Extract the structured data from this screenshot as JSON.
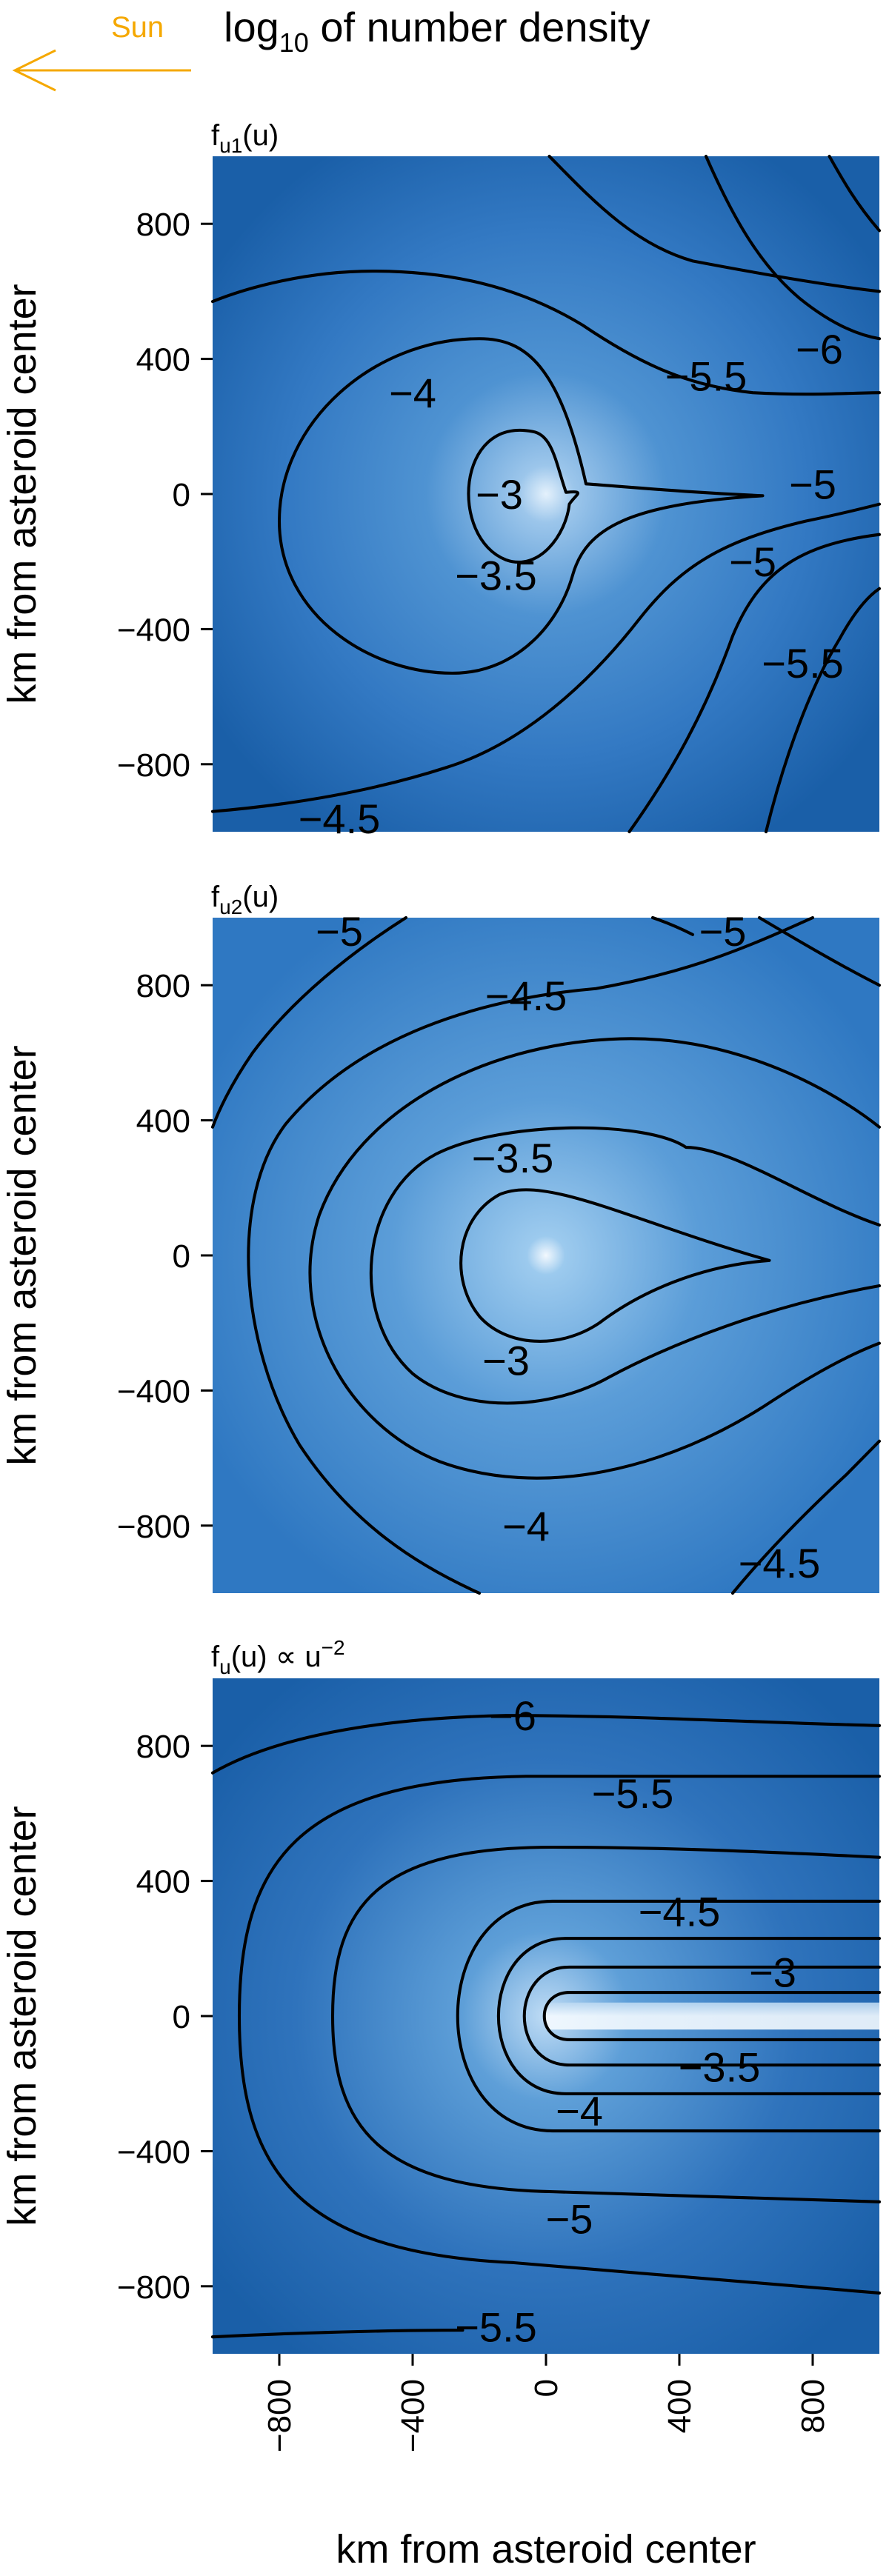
{
  "header": {
    "sun_label": "Sun",
    "title_main": "log",
    "title_sub": "10",
    "title_rest": " of number density"
  },
  "colors": {
    "sun": "#F5A800",
    "deep": "#1A5FA8",
    "light": "#E4F1FC",
    "contour": "#000000"
  },
  "chart_data": [
    {
      "type": "heatmap",
      "panel_label_parts": [
        "f",
        "u1",
        "(u)"
      ],
      "ylabel": "km from asteroid center",
      "xlim": [
        -1000,
        1000
      ],
      "ylim": [
        -1000,
        1000
      ],
      "yticks": [
        -800,
        -400,
        0,
        400,
        800
      ],
      "contour_levels": [
        -3,
        -3.5,
        -4,
        -4.5,
        -5,
        -5.5,
        -6
      ],
      "contour_labels": [
        {
          "text": "−3",
          "x": -140,
          "y": 0
        },
        {
          "text": "−3.5",
          "x": -150,
          "y": -240
        },
        {
          "text": "−4",
          "x": -400,
          "y": 300
        },
        {
          "text": "−4.5",
          "x": -620,
          "y": -960
        },
        {
          "text": "−5",
          "x": 800,
          "y": 30
        },
        {
          "text": "−5",
          "x": 620,
          "y": -200
        },
        {
          "text": "−5.5",
          "x": 480,
          "y": 350
        },
        {
          "text": "−5.5",
          "x": 770,
          "y": -500
        },
        {
          "text": "−6",
          "x": 820,
          "y": 430
        }
      ]
    },
    {
      "type": "heatmap",
      "panel_label_parts": [
        "f",
        "u2",
        "(u)"
      ],
      "ylabel": "km from asteroid center",
      "xlim": [
        -1000,
        1000
      ],
      "ylim": [
        -1000,
        1000
      ],
      "yticks": [
        -800,
        -400,
        0,
        400,
        800
      ],
      "contour_levels": [
        -3,
        -3.5,
        -4,
        -4.5,
        -5
      ],
      "contour_labels": [
        {
          "text": "−3",
          "x": -120,
          "y": -310
        },
        {
          "text": "−3.5",
          "x": -100,
          "y": 290
        },
        {
          "text": "−4",
          "x": -60,
          "y": -800
        },
        {
          "text": "−4.5",
          "x": -60,
          "y": 770
        },
        {
          "text": "−4.5",
          "x": 700,
          "y": -910
        },
        {
          "text": "−5",
          "x": -620,
          "y": 960
        },
        {
          "text": "−5",
          "x": 530,
          "y": 960
        }
      ]
    },
    {
      "type": "heatmap",
      "panel_label_parts": [
        "f",
        "u",
        "(u) ∝ u",
        "−2"
      ],
      "ylabel": "km from asteroid center",
      "xlabel": "km from asteroid center",
      "xlim": [
        -1000,
        1000
      ],
      "ylim": [
        -1000,
        1000
      ],
      "xticks": [
        -800,
        -400,
        0,
        400,
        800
      ],
      "yticks": [
        -800,
        -400,
        0,
        400,
        800
      ],
      "contour_levels": [
        -3,
        -3.5,
        -4,
        -4.5,
        -5,
        -5.5,
        -6
      ],
      "contour_labels": [
        {
          "text": "−3",
          "x": 680,
          "y": 130
        },
        {
          "text": "−3.5",
          "x": 520,
          "y": -150
        },
        {
          "text": "−4",
          "x": 100,
          "y": -280
        },
        {
          "text": "−4.5",
          "x": 400,
          "y": 310
        },
        {
          "text": "−5",
          "x": 70,
          "y": -600
        },
        {
          "text": "−5.5",
          "x": 260,
          "y": 660
        },
        {
          "text": "−5.5",
          "x": -150,
          "y": -920
        },
        {
          "text": "−6",
          "x": -100,
          "y": 890
        }
      ]
    }
  ]
}
